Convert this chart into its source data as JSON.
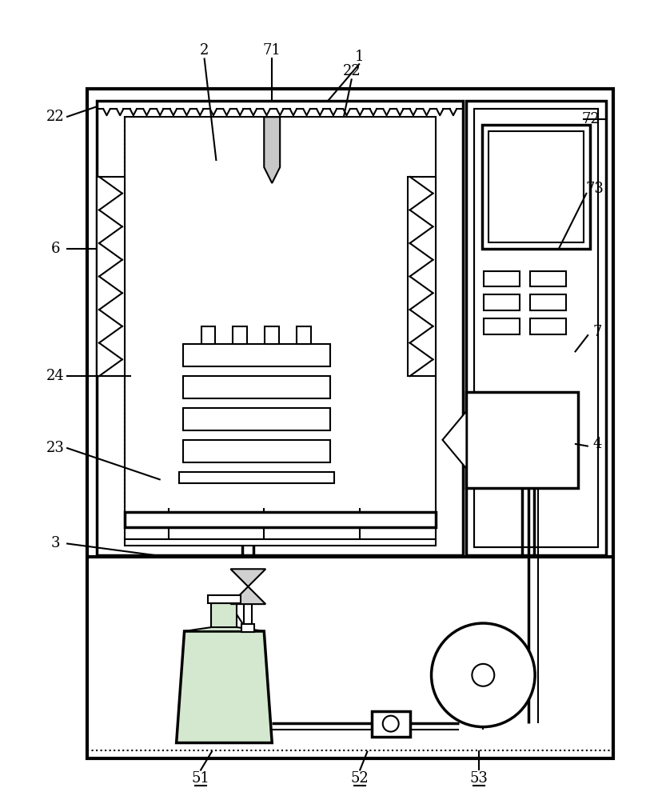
{
  "bg_color": "#ffffff",
  "lc": "#000000",
  "fig_width": 8.13,
  "fig_height": 10.0,
  "bottle_fill": "#d4e8d0",
  "probe_fill": "#c8c8c8"
}
